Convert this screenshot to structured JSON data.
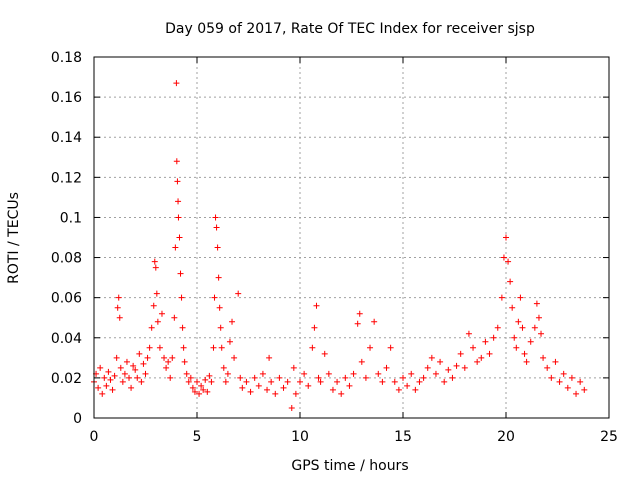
{
  "chart_data": {
    "type": "scatter",
    "title": "Day 059 of 2017, Rate Of TEC Index for receiver sjsp",
    "xlabel": "GPS time / hours",
    "ylabel": "ROTI / TECUs",
    "xlim": [
      0,
      25
    ],
    "ylim": [
      0,
      0.18
    ],
    "xticks": [
      0,
      5,
      10,
      15,
      20,
      25
    ],
    "yticks": [
      0,
      0.02,
      0.04,
      0.06,
      0.08,
      0.1,
      0.12,
      0.14,
      0.16,
      0.18
    ],
    "xtick_labels": [
      "0",
      "5",
      "10",
      "15",
      "20",
      "25"
    ],
    "ytick_labels": [
      "0",
      "0.02",
      "0.04",
      "0.06",
      "0.08",
      "0.1",
      "0.12",
      "0.14",
      "0.16",
      "0.18"
    ],
    "grid": true,
    "marker": "+",
    "color": "#ff0000",
    "series": [
      {
        "name": "ROTI",
        "points": [
          [
            0.0,
            0.018
          ],
          [
            0.1,
            0.022
          ],
          [
            0.2,
            0.015
          ],
          [
            0.3,
            0.025
          ],
          [
            0.4,
            0.012
          ],
          [
            0.5,
            0.02
          ],
          [
            0.6,
            0.016
          ],
          [
            0.7,
            0.023
          ],
          [
            0.8,
            0.019
          ],
          [
            0.9,
            0.014
          ],
          [
            1.0,
            0.021
          ],
          [
            1.1,
            0.03
          ],
          [
            1.15,
            0.055
          ],
          [
            1.2,
            0.06
          ],
          [
            1.25,
            0.05
          ],
          [
            1.3,
            0.025
          ],
          [
            1.4,
            0.018
          ],
          [
            1.5,
            0.022
          ],
          [
            1.6,
            0.028
          ],
          [
            1.7,
            0.02
          ],
          [
            1.8,
            0.015
          ],
          [
            1.9,
            0.026
          ],
          [
            2.0,
            0.024
          ],
          [
            2.1,
            0.02
          ],
          [
            2.2,
            0.032
          ],
          [
            2.3,
            0.018
          ],
          [
            2.4,
            0.027
          ],
          [
            2.5,
            0.022
          ],
          [
            2.6,
            0.03
          ],
          [
            2.7,
            0.035
          ],
          [
            2.8,
            0.045
          ],
          [
            2.9,
            0.056
          ],
          [
            2.95,
            0.078
          ],
          [
            3.0,
            0.075
          ],
          [
            3.05,
            0.062
          ],
          [
            3.1,
            0.048
          ],
          [
            3.2,
            0.035
          ],
          [
            3.3,
            0.052
          ],
          [
            3.4,
            0.03
          ],
          [
            3.5,
            0.025
          ],
          [
            3.6,
            0.028
          ],
          [
            3.7,
            0.02
          ],
          [
            3.8,
            0.03
          ],
          [
            3.9,
            0.05
          ],
          [
            3.95,
            0.085
          ],
          [
            4.0,
            0.167
          ],
          [
            4.02,
            0.128
          ],
          [
            4.05,
            0.118
          ],
          [
            4.08,
            0.108
          ],
          [
            4.1,
            0.1
          ],
          [
            4.15,
            0.09
          ],
          [
            4.2,
            0.072
          ],
          [
            4.25,
            0.06
          ],
          [
            4.3,
            0.045
          ],
          [
            4.35,
            0.035
          ],
          [
            4.4,
            0.028
          ],
          [
            4.5,
            0.022
          ],
          [
            4.6,
            0.018
          ],
          [
            4.7,
            0.02
          ],
          [
            4.8,
            0.015
          ],
          [
            4.9,
            0.013
          ],
          [
            5.0,
            0.018
          ],
          [
            5.1,
            0.012
          ],
          [
            5.2,
            0.016
          ],
          [
            5.3,
            0.014
          ],
          [
            5.4,
            0.019
          ],
          [
            5.5,
            0.013
          ],
          [
            5.6,
            0.021
          ],
          [
            5.7,
            0.018
          ],
          [
            5.8,
            0.035
          ],
          [
            5.85,
            0.06
          ],
          [
            5.9,
            0.1
          ],
          [
            5.95,
            0.095
          ],
          [
            6.0,
            0.085
          ],
          [
            6.05,
            0.07
          ],
          [
            6.1,
            0.055
          ],
          [
            6.15,
            0.045
          ],
          [
            6.2,
            0.035
          ],
          [
            6.3,
            0.025
          ],
          [
            6.4,
            0.018
          ],
          [
            6.5,
            0.022
          ],
          [
            6.6,
            0.038
          ],
          [
            6.7,
            0.048
          ],
          [
            6.8,
            0.03
          ],
          [
            7.0,
            0.062
          ],
          [
            7.1,
            0.02
          ],
          [
            7.2,
            0.015
          ],
          [
            7.4,
            0.018
          ],
          [
            7.6,
            0.013
          ],
          [
            7.8,
            0.02
          ],
          [
            8.0,
            0.016
          ],
          [
            8.2,
            0.022
          ],
          [
            8.4,
            0.014
          ],
          [
            8.5,
            0.03
          ],
          [
            8.6,
            0.018
          ],
          [
            8.8,
            0.012
          ],
          [
            9.0,
            0.02
          ],
          [
            9.2,
            0.015
          ],
          [
            9.4,
            0.018
          ],
          [
            9.6,
            0.005
          ],
          [
            9.7,
            0.025
          ],
          [
            9.8,
            0.012
          ],
          [
            10.0,
            0.018
          ],
          [
            10.2,
            0.022
          ],
          [
            10.4,
            0.016
          ],
          [
            10.6,
            0.035
          ],
          [
            10.7,
            0.045
          ],
          [
            10.8,
            0.056
          ],
          [
            10.9,
            0.02
          ],
          [
            11.0,
            0.018
          ],
          [
            11.2,
            0.032
          ],
          [
            11.4,
            0.022
          ],
          [
            11.6,
            0.014
          ],
          [
            11.8,
            0.018
          ],
          [
            12.0,
            0.012
          ],
          [
            12.2,
            0.02
          ],
          [
            12.4,
            0.016
          ],
          [
            12.6,
            0.022
          ],
          [
            12.8,
            0.047
          ],
          [
            12.9,
            0.052
          ],
          [
            13.0,
            0.028
          ],
          [
            13.2,
            0.02
          ],
          [
            13.4,
            0.035
          ],
          [
            13.6,
            0.048
          ],
          [
            13.8,
            0.022
          ],
          [
            14.0,
            0.018
          ],
          [
            14.2,
            0.025
          ],
          [
            14.4,
            0.035
          ],
          [
            14.6,
            0.018
          ],
          [
            14.8,
            0.014
          ],
          [
            15.0,
            0.02
          ],
          [
            15.2,
            0.016
          ],
          [
            15.4,
            0.022
          ],
          [
            15.6,
            0.014
          ],
          [
            15.8,
            0.018
          ],
          [
            16.0,
            0.02
          ],
          [
            16.2,
            0.025
          ],
          [
            16.4,
            0.03
          ],
          [
            16.6,
            0.022
          ],
          [
            16.8,
            0.028
          ],
          [
            17.0,
            0.018
          ],
          [
            17.2,
            0.024
          ],
          [
            17.4,
            0.02
          ],
          [
            17.6,
            0.026
          ],
          [
            17.8,
            0.032
          ],
          [
            18.0,
            0.025
          ],
          [
            18.2,
            0.042
          ],
          [
            18.4,
            0.035
          ],
          [
            18.6,
            0.028
          ],
          [
            18.8,
            0.03
          ],
          [
            19.0,
            0.038
          ],
          [
            19.2,
            0.032
          ],
          [
            19.4,
            0.04
          ],
          [
            19.6,
            0.045
          ],
          [
            19.8,
            0.06
          ],
          [
            19.9,
            0.08
          ],
          [
            20.0,
            0.09
          ],
          [
            20.1,
            0.078
          ],
          [
            20.2,
            0.068
          ],
          [
            20.3,
            0.055
          ],
          [
            20.4,
            0.04
          ],
          [
            20.5,
            0.035
          ],
          [
            20.6,
            0.048
          ],
          [
            20.7,
            0.06
          ],
          [
            20.8,
            0.045
          ],
          [
            20.9,
            0.032
          ],
          [
            21.0,
            0.028
          ],
          [
            21.2,
            0.038
          ],
          [
            21.4,
            0.045
          ],
          [
            21.5,
            0.057
          ],
          [
            21.6,
            0.05
          ],
          [
            21.7,
            0.042
          ],
          [
            21.8,
            0.03
          ],
          [
            22.0,
            0.025
          ],
          [
            22.2,
            0.02
          ],
          [
            22.4,
            0.028
          ],
          [
            22.6,
            0.018
          ],
          [
            22.8,
            0.022
          ],
          [
            23.0,
            0.015
          ],
          [
            23.2,
            0.02
          ],
          [
            23.4,
            0.012
          ],
          [
            23.6,
            0.018
          ],
          [
            23.8,
            0.014
          ]
        ]
      }
    ]
  }
}
